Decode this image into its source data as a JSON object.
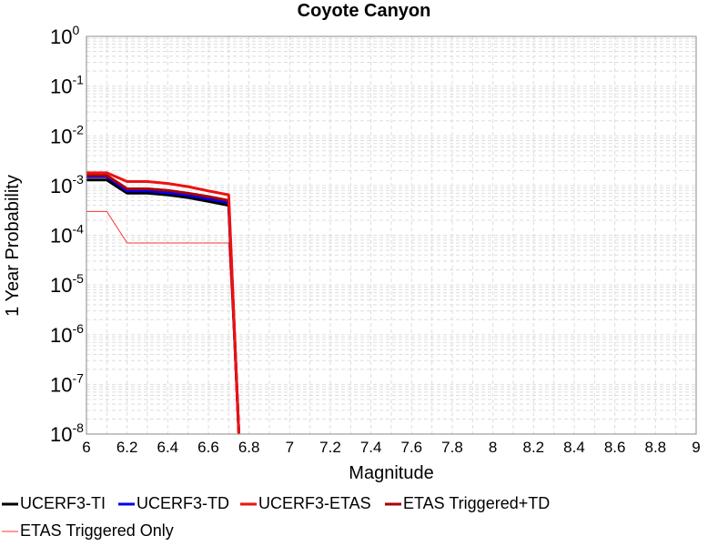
{
  "chart_data": {
    "type": "line",
    "title": "Coyote Canyon",
    "xlabel": "Magnitude",
    "ylabel": "1 Year Probability",
    "xlim": [
      6,
      9
    ],
    "ylim": [
      1e-08,
      1
    ],
    "yscale": "log",
    "grid": true,
    "legend_position": "bottom",
    "x_ticks": [
      "6",
      "6.2",
      "6.4",
      "6.6",
      "6.8",
      "7",
      "7.2",
      "7.4",
      "7.6",
      "7.8",
      "8",
      "8.2",
      "8.4",
      "8.6",
      "8.8",
      "9"
    ],
    "y_ticks": [
      {
        "base": "10",
        "exp": "0"
      },
      {
        "base": "10",
        "exp": "-1"
      },
      {
        "base": "10",
        "exp": "-2"
      },
      {
        "base": "10",
        "exp": "-3"
      },
      {
        "base": "10",
        "exp": "-4"
      },
      {
        "base": "10",
        "exp": "-5"
      },
      {
        "base": "10",
        "exp": "-6"
      },
      {
        "base": "10",
        "exp": "-7"
      },
      {
        "base": "10",
        "exp": "-8"
      }
    ],
    "series": [
      {
        "name": "ETAS Triggered Only",
        "color": "#ff3333",
        "width": 1,
        "points": [
          [
            6.0,
            0.0003
          ],
          [
            6.1,
            0.0003
          ],
          [
            6.2,
            7e-05
          ],
          [
            6.3,
            7e-05
          ],
          [
            6.4,
            7e-05
          ],
          [
            6.5,
            7e-05
          ],
          [
            6.6,
            7e-05
          ],
          [
            6.7,
            7e-05
          ],
          [
            6.75,
            1e-08
          ]
        ]
      },
      {
        "name": "UCERF3-TI",
        "color": "#000000",
        "width": 3,
        "points": [
          [
            6.0,
            0.0013
          ],
          [
            6.1,
            0.0013
          ],
          [
            6.2,
            0.0007
          ],
          [
            6.3,
            0.0007
          ],
          [
            6.4,
            0.00065
          ],
          [
            6.5,
            0.00057
          ],
          [
            6.6,
            0.00048
          ],
          [
            6.7,
            0.0004
          ],
          [
            6.75,
            1e-08
          ]
        ]
      },
      {
        "name": "UCERF3-TD",
        "color": "#0000ee",
        "width": 3,
        "points": [
          [
            6.0,
            0.0015
          ],
          [
            6.1,
            0.0015
          ],
          [
            6.2,
            0.00078
          ],
          [
            6.3,
            0.00078
          ],
          [
            6.4,
            0.00072
          ],
          [
            6.5,
            0.00064
          ],
          [
            6.6,
            0.00054
          ],
          [
            6.7,
            0.00045
          ],
          [
            6.75,
            1e-08
          ]
        ]
      },
      {
        "name": "ETAS Triggered+TD",
        "color": "#aa0000",
        "width": 3,
        "points": [
          [
            6.0,
            0.0016
          ],
          [
            6.1,
            0.0016
          ],
          [
            6.2,
            0.00086
          ],
          [
            6.3,
            0.00086
          ],
          [
            6.4,
            0.0008
          ],
          [
            6.5,
            0.0007
          ],
          [
            6.6,
            0.0006
          ],
          [
            6.7,
            0.0005
          ],
          [
            6.75,
            1e-08
          ]
        ]
      },
      {
        "name": "UCERF3-ETAS",
        "color": "#ee1111",
        "width": 3,
        "points": [
          [
            6.0,
            0.0018
          ],
          [
            6.1,
            0.0018
          ],
          [
            6.2,
            0.0012
          ],
          [
            6.3,
            0.0012
          ],
          [
            6.4,
            0.0011
          ],
          [
            6.5,
            0.00095
          ],
          [
            6.6,
            0.00078
          ],
          [
            6.7,
            0.00065
          ],
          [
            6.75,
            1e-08
          ]
        ]
      }
    ],
    "legend": [
      {
        "name": "UCERF3-TI",
        "color": "#000000",
        "width": 3
      },
      {
        "name": "UCERF3-TD",
        "color": "#0000ee",
        "width": 3
      },
      {
        "name": "UCERF3-ETAS",
        "color": "#ee1111",
        "width": 3
      },
      {
        "name": "ETAS Triggered+TD",
        "color": "#aa0000",
        "width": 3
      },
      {
        "name": "ETAS Triggered Only",
        "color": "#ff3333",
        "width": 1
      }
    ]
  }
}
